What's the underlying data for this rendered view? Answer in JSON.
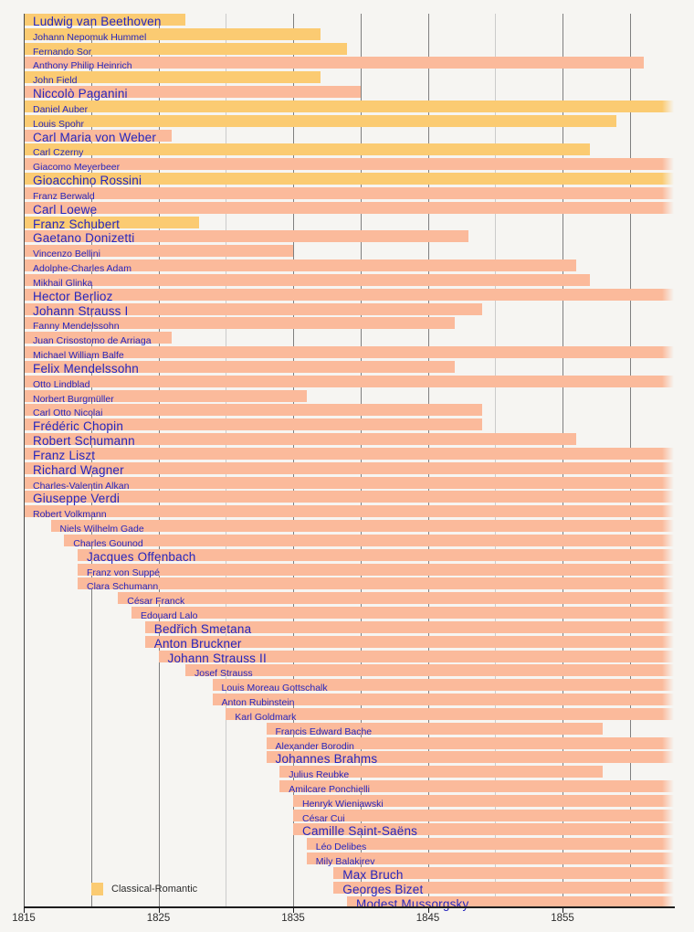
{
  "chart_data": {
    "type": "bar",
    "subtype": "timeline-lifespans",
    "title": "",
    "x_axis": {
      "min_year": 1815,
      "max_visible_year": 1863,
      "tick_years": [
        1815,
        1825,
        1835,
        1845,
        1855
      ],
      "tick_labels": [
        "1815",
        "1825",
        "1835",
        "1845",
        "1855"
      ],
      "gridline_years": [
        1820,
        1825,
        1830,
        1835,
        1840,
        1845,
        1850,
        1855,
        1860
      ],
      "light_gridline_years": [
        1830,
        1850
      ],
      "grid": "on"
    },
    "legend": [
      {
        "label": "Classical-Romantic",
        "color": "#fbcb72"
      }
    ],
    "colors": {
      "classical_romantic_bar": "#fbcb72",
      "romantic_bar": "#fbba9b",
      "label_text": "#2626bd",
      "background": "#f6f5f2",
      "gridline": "#7f7f7f",
      "gridline_light": "#cbcbcb",
      "axis": "#1e1e1e"
    },
    "composers": [
      {
        "name": "Ludwig van Beethoven",
        "group": "classical-romantic",
        "label_size": "large",
        "start_year": null,
        "clipped_left": true,
        "end_year": 1827,
        "clipped_right": false
      },
      {
        "name": "Johann Nepomuk Hummel",
        "group": "classical-romantic",
        "label_size": "small",
        "start_year": null,
        "clipped_left": true,
        "end_year": 1837,
        "clipped_right": false
      },
      {
        "name": "Fernando Sor",
        "group": "classical-romantic",
        "label_size": "small",
        "start_year": null,
        "clipped_left": true,
        "end_year": 1839,
        "clipped_right": false
      },
      {
        "name": "Anthony Philip Heinrich",
        "group": "romantic",
        "label_size": "small",
        "start_year": null,
        "clipped_left": true,
        "end_year": 1861,
        "clipped_right": false
      },
      {
        "name": "John Field",
        "group": "classical-romantic",
        "label_size": "small",
        "start_year": null,
        "clipped_left": true,
        "end_year": 1837,
        "clipped_right": false
      },
      {
        "name": "Niccolò Paganini",
        "group": "romantic",
        "label_size": "large",
        "start_year": null,
        "clipped_left": true,
        "end_year": 1840,
        "clipped_right": false
      },
      {
        "name": "Daniel Auber",
        "group": "classical-romantic",
        "label_size": "small",
        "start_year": null,
        "clipped_left": true,
        "end_year": null,
        "clipped_right": true
      },
      {
        "name": "Louis Spohr",
        "group": "classical-romantic",
        "label_size": "small",
        "start_year": null,
        "clipped_left": true,
        "end_year": 1859,
        "clipped_right": false
      },
      {
        "name": "Carl Maria von Weber",
        "group": "romantic",
        "label_size": "large",
        "start_year": null,
        "clipped_left": true,
        "end_year": 1826,
        "clipped_right": false
      },
      {
        "name": "Carl Czerny",
        "group": "classical-romantic",
        "label_size": "small",
        "start_year": null,
        "clipped_left": true,
        "end_year": 1857,
        "clipped_right": false
      },
      {
        "name": "Giacomo Meyerbeer",
        "group": "romantic",
        "label_size": "small",
        "start_year": null,
        "clipped_left": true,
        "end_year": null,
        "clipped_right": true
      },
      {
        "name": "Gioacchino Rossini",
        "group": "classical-romantic",
        "label_size": "large",
        "start_year": null,
        "clipped_left": true,
        "end_year": null,
        "clipped_right": true
      },
      {
        "name": "Franz Berwald",
        "group": "romantic",
        "label_size": "small",
        "start_year": null,
        "clipped_left": true,
        "end_year": null,
        "clipped_right": true
      },
      {
        "name": "Carl Loewe",
        "group": "romantic",
        "label_size": "large",
        "start_year": null,
        "clipped_left": true,
        "end_year": null,
        "clipped_right": true
      },
      {
        "name": "Franz Schubert",
        "group": "classical-romantic",
        "label_size": "large",
        "start_year": null,
        "clipped_left": true,
        "end_year": 1828,
        "clipped_right": false
      },
      {
        "name": "Gaetano Donizetti",
        "group": "romantic",
        "label_size": "large",
        "start_year": null,
        "clipped_left": true,
        "end_year": 1848,
        "clipped_right": false
      },
      {
        "name": "Vincenzo Bellini",
        "group": "romantic",
        "label_size": "small",
        "start_year": null,
        "clipped_left": true,
        "end_year": 1835,
        "clipped_right": false
      },
      {
        "name": "Adolphe-Charles Adam",
        "group": "romantic",
        "label_size": "small",
        "start_year": null,
        "clipped_left": true,
        "end_year": 1856,
        "clipped_right": false
      },
      {
        "name": "Mikhail Glinka",
        "group": "romantic",
        "label_size": "small",
        "start_year": null,
        "clipped_left": true,
        "end_year": 1857,
        "clipped_right": false
      },
      {
        "name": "Hector Berlioz",
        "group": "romantic",
        "label_size": "large",
        "start_year": null,
        "clipped_left": true,
        "end_year": null,
        "clipped_right": true
      },
      {
        "name": "Johann Strauss I",
        "group": "romantic",
        "label_size": "large",
        "start_year": null,
        "clipped_left": true,
        "end_year": 1849,
        "clipped_right": false
      },
      {
        "name": "Fanny Mendelssohn",
        "group": "romantic",
        "label_size": "small",
        "start_year": null,
        "clipped_left": true,
        "end_year": 1847,
        "clipped_right": false
      },
      {
        "name": "Juan Crisostomo de Arriaga",
        "group": "romantic",
        "label_size": "small",
        "start_year": null,
        "clipped_left": true,
        "end_year": 1826,
        "clipped_right": false
      },
      {
        "name": "Michael William Balfe",
        "group": "romantic",
        "label_size": "small",
        "start_year": null,
        "clipped_left": true,
        "end_year": null,
        "clipped_right": true
      },
      {
        "name": "Felix Mendelssohn",
        "group": "romantic",
        "label_size": "large",
        "start_year": null,
        "clipped_left": true,
        "end_year": 1847,
        "clipped_right": false
      },
      {
        "name": "Otto Lindblad",
        "group": "romantic",
        "label_size": "small",
        "start_year": null,
        "clipped_left": true,
        "end_year": null,
        "clipped_right": true
      },
      {
        "name": "Norbert Burgmüller",
        "group": "romantic",
        "label_size": "small",
        "start_year": null,
        "clipped_left": true,
        "end_year": 1836,
        "clipped_right": false
      },
      {
        "name": "Carl Otto Nicolai",
        "group": "romantic",
        "label_size": "small",
        "start_year": null,
        "clipped_left": true,
        "end_year": 1849,
        "clipped_right": false
      },
      {
        "name": "Frédéric Chopin",
        "group": "romantic",
        "label_size": "large",
        "start_year": null,
        "clipped_left": true,
        "end_year": 1849,
        "clipped_right": false
      },
      {
        "name": "Robert Schumann",
        "group": "romantic",
        "label_size": "large",
        "start_year": null,
        "clipped_left": true,
        "end_year": 1856,
        "clipped_right": false
      },
      {
        "name": "Franz Liszt",
        "group": "romantic",
        "label_size": "large",
        "start_year": null,
        "clipped_left": true,
        "end_year": null,
        "clipped_right": true
      },
      {
        "name": "Richard Wagner",
        "group": "romantic",
        "label_size": "large",
        "start_year": null,
        "clipped_left": true,
        "end_year": null,
        "clipped_right": true
      },
      {
        "name": "Charles-Valentin Alkan",
        "group": "romantic",
        "label_size": "small",
        "start_year": null,
        "clipped_left": true,
        "end_year": null,
        "clipped_right": true
      },
      {
        "name": "Giuseppe Verdi",
        "group": "romantic",
        "label_size": "large",
        "start_year": null,
        "clipped_left": true,
        "end_year": null,
        "clipped_right": true
      },
      {
        "name": "Robert Volkmann",
        "group": "romantic",
        "label_size": "small",
        "start_year": null,
        "clipped_left": true,
        "end_year": null,
        "clipped_right": true
      },
      {
        "name": "Niels Wilhelm Gade",
        "group": "romantic",
        "label_size": "small",
        "start_year": 1817,
        "clipped_left": false,
        "end_year": null,
        "clipped_right": true
      },
      {
        "name": "Charles Gounod",
        "group": "romantic",
        "label_size": "small",
        "start_year": 1818,
        "clipped_left": false,
        "end_year": null,
        "clipped_right": true
      },
      {
        "name": "Jacques Offenbach",
        "group": "romantic",
        "label_size": "large",
        "start_year": 1819,
        "clipped_left": false,
        "end_year": null,
        "clipped_right": true
      },
      {
        "name": "Franz von Suppé",
        "group": "romantic",
        "label_size": "small",
        "start_year": 1819,
        "clipped_left": false,
        "end_year": null,
        "clipped_right": true
      },
      {
        "name": "Clara Schumann",
        "group": "romantic",
        "label_size": "small",
        "start_year": 1819,
        "clipped_left": false,
        "end_year": null,
        "clipped_right": true
      },
      {
        "name": "César Franck",
        "group": "romantic",
        "label_size": "small",
        "start_year": 1822,
        "clipped_left": false,
        "end_year": null,
        "clipped_right": true
      },
      {
        "name": "Edouard Lalo",
        "group": "romantic",
        "label_size": "small",
        "start_year": 1823,
        "clipped_left": false,
        "end_year": null,
        "clipped_right": true
      },
      {
        "name": "Bedřich Smetana",
        "group": "romantic",
        "label_size": "large",
        "start_year": 1824,
        "clipped_left": false,
        "end_year": null,
        "clipped_right": true
      },
      {
        "name": "Anton Bruckner",
        "group": "romantic",
        "label_size": "large",
        "start_year": 1824,
        "clipped_left": false,
        "end_year": null,
        "clipped_right": true
      },
      {
        "name": "Johann Strauss II",
        "group": "romantic",
        "label_size": "large",
        "start_year": 1825,
        "clipped_left": false,
        "end_year": null,
        "clipped_right": true
      },
      {
        "name": "Josef Strauss",
        "group": "romantic",
        "label_size": "small",
        "start_year": 1827,
        "clipped_left": false,
        "end_year": null,
        "clipped_right": true
      },
      {
        "name": "Louis Moreau Gottschalk",
        "group": "romantic",
        "label_size": "small",
        "start_year": 1829,
        "clipped_left": false,
        "end_year": null,
        "clipped_right": true
      },
      {
        "name": "Anton Rubinstein",
        "group": "romantic",
        "label_size": "small",
        "start_year": 1829,
        "clipped_left": false,
        "end_year": null,
        "clipped_right": true
      },
      {
        "name": "Karl Goldmark",
        "group": "romantic",
        "label_size": "small",
        "start_year": 1830,
        "clipped_left": false,
        "end_year": null,
        "clipped_right": true
      },
      {
        "name": "Francis Edward Bache",
        "group": "romantic",
        "label_size": "small",
        "start_year": 1833,
        "clipped_left": false,
        "end_year": 1858,
        "clipped_right": false
      },
      {
        "name": "Alexander Borodin",
        "group": "romantic",
        "label_size": "small",
        "start_year": 1833,
        "clipped_left": false,
        "end_year": null,
        "clipped_right": true
      },
      {
        "name": "Johannes Brahms",
        "group": "romantic",
        "label_size": "large",
        "start_year": 1833,
        "clipped_left": false,
        "end_year": null,
        "clipped_right": true
      },
      {
        "name": "Julius Reubke",
        "group": "romantic",
        "label_size": "small",
        "start_year": 1834,
        "clipped_left": false,
        "end_year": 1858,
        "clipped_right": false
      },
      {
        "name": "Amilcare Ponchielli",
        "group": "romantic",
        "label_size": "small",
        "start_year": 1834,
        "clipped_left": false,
        "end_year": null,
        "clipped_right": true
      },
      {
        "name": "Henryk Wieniawski",
        "group": "romantic",
        "label_size": "small",
        "start_year": 1835,
        "clipped_left": false,
        "end_year": null,
        "clipped_right": true
      },
      {
        "name": "César Cui",
        "group": "romantic",
        "label_size": "small",
        "start_year": 1835,
        "clipped_left": false,
        "end_year": null,
        "clipped_right": true
      },
      {
        "name": "Camille Saint-Saëns",
        "group": "romantic",
        "label_size": "large",
        "start_year": 1835,
        "clipped_left": false,
        "end_year": null,
        "clipped_right": true
      },
      {
        "name": "Léo Delibes",
        "group": "romantic",
        "label_size": "small",
        "start_year": 1836,
        "clipped_left": false,
        "end_year": null,
        "clipped_right": true
      },
      {
        "name": "Mily Balakirev",
        "group": "romantic",
        "label_size": "small",
        "start_year": 1836,
        "clipped_left": false,
        "end_year": null,
        "clipped_right": true
      },
      {
        "name": "Max Bruch",
        "group": "romantic",
        "label_size": "large",
        "start_year": 1838,
        "clipped_left": false,
        "end_year": null,
        "clipped_right": true
      },
      {
        "name": "Georges Bizet",
        "group": "romantic",
        "label_size": "large",
        "start_year": 1838,
        "clipped_left": false,
        "end_year": null,
        "clipped_right": true
      },
      {
        "name": "Modest Mussorgsky",
        "group": "romantic",
        "label_size": "large",
        "start_year": 1839,
        "clipped_left": false,
        "end_year": null,
        "clipped_right": true
      }
    ]
  }
}
